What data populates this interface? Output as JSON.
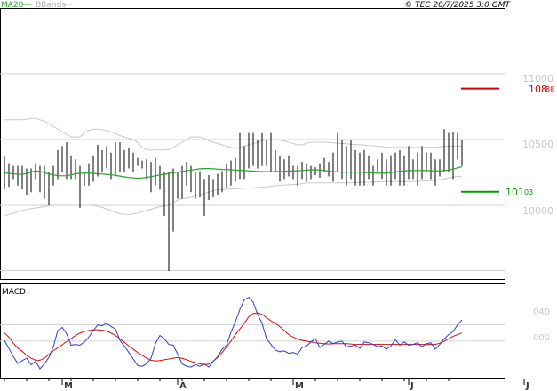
{
  "header": {
    "legend_ma": "MA20",
    "legend_bbands": "BBands",
    "copyright": "© TEC 20/7/2025 3:0 GMT"
  },
  "price_axis": {
    "ticks": [
      "11000",
      "10500",
      "10000"
    ],
    "ylim": [
      9500,
      11500
    ],
    "grid": true
  },
  "markers": {
    "resistance": {
      "label": "108",
      "sub": "88",
      "value": 10888,
      "color": "#cc0000"
    },
    "support": {
      "label": "101",
      "sub": "03",
      "value": 10103,
      "color": "#00a000"
    }
  },
  "macd_panel": {
    "title": "MACD",
    "ticks": [
      "040",
      "000"
    ],
    "ylim": [
      -90,
      140
    ]
  },
  "x_axis": {
    "labels": [
      "M",
      "A",
      "M",
      "J",
      "J"
    ]
  },
  "colors": {
    "price_bar": "#000000",
    "ma": "#2aa02a",
    "bbands": "#c8c8c8",
    "macd": "#2a3fd0",
    "signal": "#d01010",
    "grid": "#d0d0d0"
  },
  "chart_data": {
    "type": "line",
    "bars_count": 104,
    "month_index": [
      14,
      40,
      66,
      92,
      118
    ],
    "x_labels": [
      "M",
      "A",
      "M",
      "J",
      "J"
    ],
    "ma20": [
      10245,
      10243,
      10240,
      10238,
      10236,
      10242,
      10252,
      10262,
      10258,
      10248,
      10238,
      10232,
      10226,
      10224,
      10225,
      10232,
      10240,
      10244,
      10246,
      10245,
      10243,
      10240,
      10238,
      10236,
      10232,
      10228,
      10222,
      10216,
      10212,
      10208,
      10206,
      10208,
      10212,
      10218,
      10224,
      10232,
      10236,
      10242,
      10248,
      10252,
      10258,
      10263,
      10268,
      10273,
      10278,
      10280,
      10280,
      10278,
      10275,
      10273,
      10272,
      10270,
      10268,
      10266,
      10264,
      10262,
      10260,
      10258,
      10257,
      10256,
      10256,
      10257,
      10258,
      10259,
      10260,
      10261,
      10262,
      10264,
      10268,
      10270,
      10270,
      10268,
      10264,
      10260,
      10256,
      10254,
      10253,
      10253,
      10253,
      10253,
      10252,
      10250,
      10248,
      10246,
      10244,
      10244,
      10246,
      10250,
      10254,
      10258,
      10262,
      10264,
      10265,
      10265,
      10265,
      10264,
      10263,
      10262,
      10262,
      10264,
      10268,
      10276,
      10285,
      10294
    ],
    "bb_upper": [
      10650,
      10650,
      10650,
      10650,
      10650,
      10655,
      10660,
      10660,
      10650,
      10640,
      10620,
      10600,
      10580,
      10560,
      10540,
      10520,
      10520,
      10520,
      10550,
      10570,
      10580,
      10580,
      10575,
      10570,
      10560,
      10545,
      10530,
      10520,
      10510,
      10500,
      10480,
      10440,
      10420,
      10420,
      10420,
      10420,
      10420,
      10425,
      10440,
      10460,
      10480,
      10500,
      10520,
      10520,
      10520,
      10510,
      10490,
      10480,
      10470,
      10460,
      10450,
      10440,
      10430,
      10440,
      10450,
      10460,
      10470,
      10480,
      10490,
      10500,
      10500,
      10498,
      10495,
      10490,
      10480,
      10470,
      10460,
      10460,
      10470,
      10480,
      10480,
      10480,
      10480,
      10478,
      10475,
      10472,
      10470,
      10468,
      10465,
      10462,
      10460,
      10458,
      10455,
      10452,
      10450,
      10446,
      10442,
      10440,
      10440,
      10440,
      10440,
      10440,
      10440,
      10440,
      10440,
      10440,
      10440,
      10440,
      10445,
      10450,
      10450,
      10450,
      10450,
      10450
    ],
    "bb_lower": [
      9920,
      9930,
      9940,
      9950,
      9960,
      9968,
      9975,
      9980,
      9985,
      9990,
      9996,
      10000,
      10000,
      10000,
      10000,
      10000,
      10000,
      10000,
      10000,
      10000,
      10000,
      9992,
      9984,
      9972,
      9960,
      9945,
      9935,
      9932,
      9930,
      9935,
      9940,
      9950,
      9960,
      9970,
      9980,
      9990,
      9995,
      10000,
      10020,
      10040,
      10050,
      10055,
      10060,
      10070,
      10080,
      10090,
      10100,
      10110,
      10118,
      10120,
      10122,
      10124,
      10126,
      10128,
      10130,
      10132,
      10134,
      10136,
      10138,
      10140,
      10145,
      10150,
      10152,
      10154,
      10156,
      10158,
      10160,
      10165,
      10170,
      10170,
      10170,
      10170,
      10170,
      10170,
      10170,
      10170,
      10170,
      10170,
      10170,
      10172,
      10174,
      10175,
      10176,
      10178,
      10180,
      10180,
      10180,
      10180,
      10180,
      10180,
      10180,
      10180,
      10180,
      10182,
      10184,
      10186,
      10188,
      10190,
      10195,
      10200,
      10210,
      10215,
      10220,
      10220
    ],
    "price_bars": [
      [
        10120,
        10370
      ],
      [
        10140,
        10320
      ],
      [
        10200,
        10300
      ],
      [
        10150,
        10300
      ],
      [
        10120,
        10300
      ],
      [
        10080,
        10280
      ],
      [
        10100,
        10280
      ],
      [
        10200,
        10320
      ],
      [
        10100,
        10300
      ],
      [
        10050,
        10300
      ],
      [
        10000,
        10250
      ],
      [
        10150,
        10300
      ],
      [
        10200,
        10420
      ],
      [
        10250,
        10450
      ],
      [
        10200,
        10480
      ],
      [
        10200,
        10380
      ],
      [
        10200,
        10350
      ],
      [
        9980,
        10300
      ],
      [
        10150,
        10250
      ],
      [
        10150,
        10320
      ],
      [
        10180,
        10380
      ],
      [
        10220,
        10460
      ],
      [
        10250,
        10420
      ],
      [
        10280,
        10450
      ],
      [
        10200,
        10400
      ],
      [
        10220,
        10480
      ],
      [
        10250,
        10480
      ],
      [
        10250,
        10420
      ],
      [
        10280,
        10440
      ],
      [
        10250,
        10400
      ],
      [
        10300,
        10360
      ],
      [
        10280,
        10340
      ],
      [
        10200,
        10350
      ],
      [
        10100,
        10330
      ],
      [
        10150,
        10360
      ],
      [
        10120,
        10300
      ],
      [
        9920,
        10250
      ],
      [
        9500,
        10250
      ],
      [
        9800,
        10280
      ],
      [
        10050,
        10250
      ],
      [
        10050,
        10300
      ],
      [
        10150,
        10330
      ],
      [
        10100,
        10300
      ],
      [
        10050,
        10250
      ],
      [
        10060,
        10260
      ],
      [
        9920,
        10200
      ],
      [
        10040,
        10230
      ],
      [
        10060,
        10200
      ],
      [
        10080,
        10240
      ],
      [
        10100,
        10260
      ],
      [
        10130,
        10310
      ],
      [
        10150,
        10340
      ],
      [
        10180,
        10360
      ],
      [
        10200,
        10550
      ],
      [
        10200,
        10450
      ],
      [
        10280,
        10550
      ],
      [
        10300,
        10550
      ],
      [
        10280,
        10500
      ],
      [
        10300,
        10550
      ],
      [
        10300,
        10500
      ],
      [
        10250,
        10550
      ],
      [
        10250,
        10420
      ],
      [
        10180,
        10380
      ],
      [
        10200,
        10350
      ],
      [
        10220,
        10380
      ],
      [
        10200,
        10300
      ],
      [
        10150,
        10300
      ],
      [
        10200,
        10330
      ],
      [
        10180,
        10320
      ],
      [
        10200,
        10300
      ],
      [
        10230,
        10290
      ],
      [
        10210,
        10320
      ],
      [
        10250,
        10360
      ],
      [
        10220,
        10330
      ],
      [
        10180,
        10400
      ],
      [
        10250,
        10550
      ],
      [
        10200,
        10500
      ],
      [
        10150,
        10450
      ],
      [
        10200,
        10500
      ],
      [
        10150,
        10420
      ],
      [
        10150,
        10400
      ],
      [
        10150,
        10420
      ],
      [
        10200,
        10380
      ],
      [
        10150,
        10300
      ],
      [
        10250,
        10350
      ],
      [
        10200,
        10400
      ],
      [
        10150,
        10350
      ],
      [
        10150,
        10380
      ],
      [
        10200,
        10400
      ],
      [
        10150,
        10420
      ],
      [
        10150,
        10380
      ],
      [
        10200,
        10450
      ],
      [
        10200,
        10350
      ],
      [
        10150,
        10400
      ],
      [
        10200,
        10450
      ],
      [
        10250,
        10400
      ],
      [
        10200,
        10400
      ],
      [
        10150,
        10350
      ],
      [
        10220,
        10350
      ],
      [
        10250,
        10580
      ],
      [
        10250,
        10550
      ],
      [
        10200,
        10560
      ],
      [
        10350,
        10550
      ],
      [
        10300,
        10500
      ]
    ],
    "macd": [
      2,
      -18,
      -38,
      -55,
      -48,
      -42,
      -58,
      -50,
      -68,
      -56,
      -40,
      -14,
      26,
      34,
      18,
      -10,
      -8,
      -10,
      -2,
      10,
      26,
      40,
      38,
      44,
      36,
      30,
      2,
      -12,
      -28,
      -44,
      -60,
      -62,
      -56,
      -42,
      -6,
      14,
      6,
      -8,
      -10,
      -32,
      -56,
      -62,
      -64,
      -58,
      -62,
      -56,
      -64,
      -50,
      -38,
      -20,
      -10,
      22,
      48,
      78,
      102,
      108,
      96,
      66,
      44,
      6,
      -8,
      -22,
      -26,
      -24,
      -30,
      -28,
      -32,
      -16,
      -12,
      -2,
      6,
      -16,
      -8,
      0,
      -6,
      -2,
      0,
      -14,
      -12,
      -10,
      -18,
      -2,
      -4,
      -8,
      -14,
      -12,
      -20,
      -12,
      4,
      -10,
      -2,
      -10,
      -8,
      -4,
      -14,
      -6,
      -4,
      -20,
      -8,
      6,
      16,
      24,
      40,
      52
    ],
    "signal": [
      20,
      10,
      -5,
      -17,
      -25,
      -35,
      -42,
      -47,
      -47,
      -42,
      -33,
      -24,
      -16,
      -9,
      -1,
      6,
      14,
      20,
      24,
      26,
      28,
      28,
      27,
      25,
      20,
      14,
      6,
      -3,
      -12,
      -20,
      -28,
      -35,
      -42,
      -47,
      -49,
      -48,
      -46,
      -44,
      -42,
      -40,
      -42,
      -46,
      -50,
      -53,
      -56,
      -58,
      -57,
      -50,
      -40,
      -28,
      -14,
      0,
      16,
      30,
      44,
      60,
      68,
      70,
      66,
      58,
      50,
      44,
      36,
      26,
      16,
      10,
      5,
      2,
      0,
      -2,
      -4,
      -5,
      -6,
      -7,
      -6,
      -6,
      -6,
      -6,
      -7,
      -8,
      -8,
      -8,
      -8,
      -8,
      -8,
      -8,
      -8,
      -8,
      -8,
      -8,
      -8,
      -8,
      -8,
      -8,
      -8,
      -8,
      -8,
      -8,
      -5,
      0,
      6,
      12,
      16,
      20
    ]
  }
}
